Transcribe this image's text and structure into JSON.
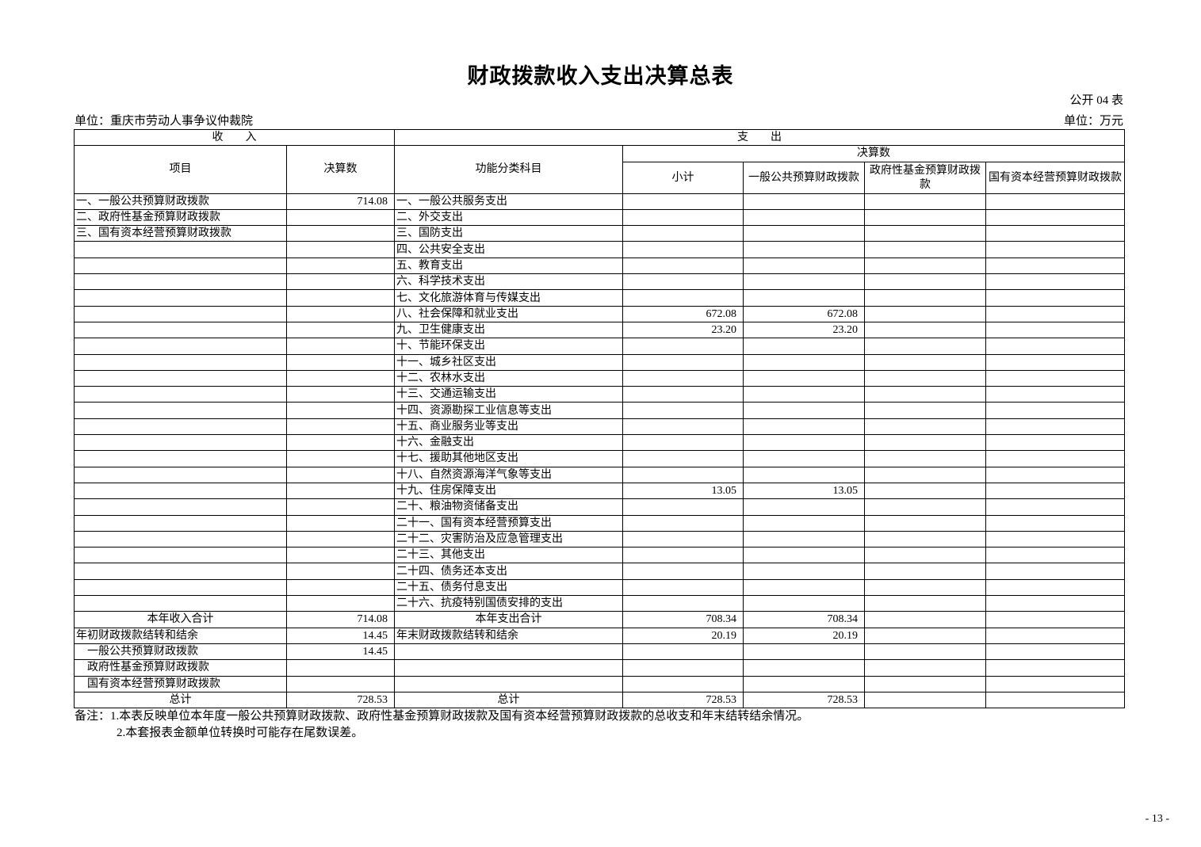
{
  "title": "财政拨款收入支出决算总表",
  "form_no": "公开 04 表",
  "unit_org": "单位：重庆市劳动人事争议仲裁院",
  "unit_currency": "单位：万元",
  "header": {
    "income": "收　　入",
    "expense": "支　　出",
    "item": "项目",
    "amount": "决算数",
    "function_category": "功能分类科目",
    "final_amount": "决算数",
    "subtotal": "小计",
    "general_budget": "一般公共预算财政拨款",
    "gov_fund": "政府性基金预算财政拨款",
    "state_capital": "国有资本经营预算财政拨款"
  },
  "rows": [
    [
      "一、一般公共预算财政拨款",
      "714.08",
      "一、一般公共服务支出",
      "",
      "",
      "",
      ""
    ],
    [
      "二、政府性基金预算财政拨款",
      "",
      "二、外交支出",
      "",
      "",
      "",
      ""
    ],
    [
      "三、国有资本经营预算财政拨款",
      "",
      "三、国防支出",
      "",
      "",
      "",
      ""
    ],
    [
      "",
      "",
      "四、公共安全支出",
      "",
      "",
      "",
      ""
    ],
    [
      "",
      "",
      "五、教育支出",
      "",
      "",
      "",
      ""
    ],
    [
      "",
      "",
      "六、科学技术支出",
      "",
      "",
      "",
      ""
    ],
    [
      "",
      "",
      "七、文化旅游体育与传媒支出",
      "",
      "",
      "",
      ""
    ],
    [
      "",
      "",
      "八、社会保障和就业支出",
      "672.08",
      "672.08",
      "",
      ""
    ],
    [
      "",
      "",
      "九、卫生健康支出",
      "23.20",
      "23.20",
      "",
      ""
    ],
    [
      "",
      "",
      "十、节能环保支出",
      "",
      "",
      "",
      ""
    ],
    [
      "",
      "",
      "十一、城乡社区支出",
      "",
      "",
      "",
      ""
    ],
    [
      "",
      "",
      "十二、农林水支出",
      "",
      "",
      "",
      ""
    ],
    [
      "",
      "",
      "十三、交通运输支出",
      "",
      "",
      "",
      ""
    ],
    [
      "",
      "",
      "十四、资源勘探工业信息等支出",
      "",
      "",
      "",
      ""
    ],
    [
      "",
      "",
      "十五、商业服务业等支出",
      "",
      "",
      "",
      ""
    ],
    [
      "",
      "",
      "十六、金融支出",
      "",
      "",
      "",
      ""
    ],
    [
      "",
      "",
      "十七、援助其他地区支出",
      "",
      "",
      "",
      ""
    ],
    [
      "",
      "",
      "十八、自然资源海洋气象等支出",
      "",
      "",
      "",
      ""
    ],
    [
      "",
      "",
      "十九、住房保障支出",
      "13.05",
      "13.05",
      "",
      ""
    ],
    [
      "",
      "",
      "二十、粮油物资储备支出",
      "",
      "",
      "",
      ""
    ],
    [
      "",
      "",
      "二十一、国有资本经营预算支出",
      "",
      "",
      "",
      ""
    ],
    [
      "",
      "",
      "二十二、灾害防治及应急管理支出",
      "",
      "",
      "",
      ""
    ],
    [
      "",
      "",
      "二十三、其他支出",
      "",
      "",
      "",
      ""
    ],
    [
      "",
      "",
      "二十四、债务还本支出",
      "",
      "",
      "",
      ""
    ],
    [
      "",
      "",
      "二十五、债务付息支出",
      "",
      "",
      "",
      ""
    ],
    [
      "",
      "",
      "二十六、抗疫特别国债安排的支出",
      "",
      "",
      "",
      ""
    ],
    [
      "本年收入合计",
      "714.08",
      "本年支出合计",
      "708.34",
      "708.34",
      "",
      ""
    ],
    [
      "年初财政拨款结转和结余",
      "14.45",
      "年末财政拨款结转和结余",
      "20.19",
      "20.19",
      "",
      ""
    ],
    [
      "一般公共预算财政拨款",
      "14.45",
      "",
      "",
      "",
      "",
      ""
    ],
    [
      "政府性基金预算财政拨款",
      "",
      "",
      "",
      "",
      "",
      ""
    ],
    [
      "国有资本经营预算财政拨款",
      "",
      "",
      "",
      "",
      "",
      ""
    ],
    [
      "总计",
      "728.53",
      "总计",
      "728.53",
      "728.53",
      "",
      ""
    ]
  ],
  "notes": [
    "备注：1.本表反映单位本年度一般公共预算财政拨款、政府性基金预算财政拨款及国有资本经营预算财政拨款的总收支和年末结转结余情况。",
    "2.本套报表金额单位转换时可能存在尾数误差。"
  ],
  "page_number": "- 13 -"
}
